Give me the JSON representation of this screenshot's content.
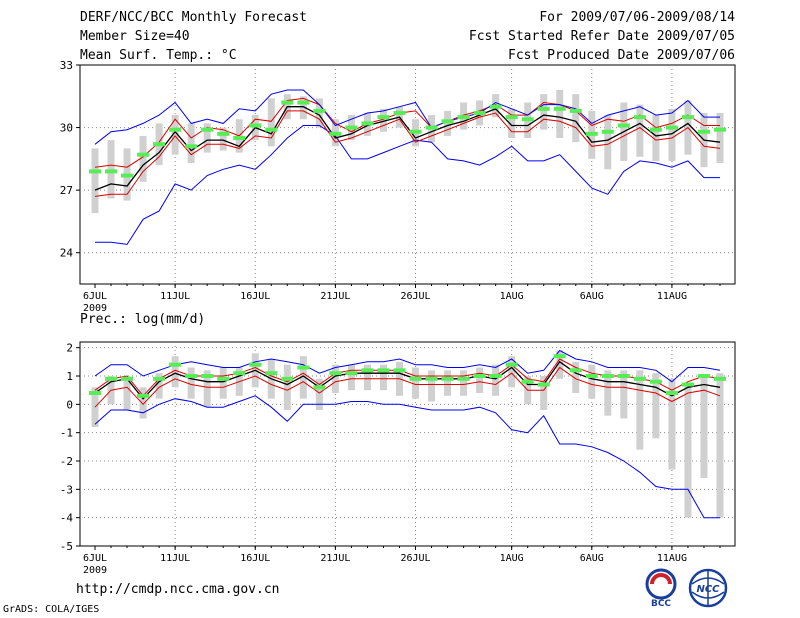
{
  "header": {
    "title": "DERF/NCC/BCC Monthly Forecast",
    "member_size": "Member Size=40",
    "variable": "Mean Surf. Temp.: °C",
    "forecast_range": "For 2009/07/06-2009/08/14",
    "start_date": "Fcst Started Refer Date 2009/07/05",
    "produced_date": "Fcst Produced Date 2009/07/06"
  },
  "footer": {
    "url": "http://cmdp.ncc.cma.gov.cn",
    "credit": "GrADS: COLA/IGES",
    "logo_bcc": "BCC",
    "logo_ncc": "NCC"
  },
  "colors": {
    "box": "#d0d0d0",
    "median": "#55ee55",
    "mean": "#000000",
    "range": "#0000ee",
    "spread": "#dd0000"
  },
  "chart_data": [
    {
      "type": "line",
      "title": "Mean Surf. Temp.: °C",
      "x": [
        1,
        2,
        3,
        4,
        5,
        6,
        7,
        8,
        9,
        10,
        11,
        12,
        13,
        14,
        15,
        16,
        17,
        18,
        19,
        20,
        21,
        22,
        23,
        24,
        25,
        26,
        27,
        28,
        29,
        30,
        31,
        32,
        33,
        34,
        35,
        36,
        37,
        38,
        39,
        40
      ],
      "x_ticks": [
        {
          "day": 1,
          "label": "6JUL",
          "sub": "2009"
        },
        {
          "day": 6,
          "label": "11JUL",
          "sub": ""
        },
        {
          "day": 11,
          "label": "16JUL",
          "sub": ""
        },
        {
          "day": 16,
          "label": "21JUL",
          "sub": ""
        },
        {
          "day": 21,
          "label": "26JUL",
          "sub": ""
        },
        {
          "day": 27,
          "label": "1AUG",
          "sub": ""
        },
        {
          "day": 32,
          "label": "6AUG",
          "sub": ""
        },
        {
          "day": 37,
          "label": "11AUG",
          "sub": ""
        }
      ],
      "ylim": [
        22.5,
        33
      ],
      "y_ticks": [
        24,
        27,
        30,
        33
      ],
      "series": [
        {
          "name": "max",
          "values": [
            24.5,
            24.5,
            24.4,
            25.6,
            26.0,
            27.3,
            27.0,
            27.7,
            28.0,
            28.2,
            28.0,
            28.7,
            29.5,
            30.1,
            30.1,
            29.6,
            28.5,
            28.5,
            28.8,
            29.1,
            29.4,
            29.3,
            28.5,
            28.4,
            28.2,
            28.6,
            29.1,
            28.4,
            28.4,
            28.7,
            27.9,
            27.1,
            26.8,
            27.9,
            28.4,
            28.3,
            28.1,
            28.4,
            27.6,
            27.6
          ]
        },
        {
          "name": "ensemble_upper",
          "values": [
            28.1,
            28.2,
            28.1,
            28.6,
            29.3,
            30.4,
            29.5,
            30.0,
            29.9,
            29.6,
            30.4,
            30.3,
            31.3,
            31.4,
            31.1,
            30.2,
            29.8,
            30.2,
            30.4,
            30.7,
            30.8,
            30.0,
            30.3,
            30.6,
            30.8,
            31.1,
            30.6,
            30.6,
            31.2,
            31.1,
            30.8,
            30.1,
            30.4,
            30.3,
            30.6,
            30.0,
            30.2,
            30.6,
            30.1,
            30.1
          ]
        },
        {
          "name": "median",
          "values": [
            27.9,
            27.9,
            27.7,
            28.7,
            29.2,
            29.9,
            29.1,
            29.9,
            29.7,
            29.5,
            30.1,
            29.9,
            31.2,
            31.2,
            30.8,
            29.7,
            30.0,
            30.2,
            30.5,
            30.7,
            29.8,
            30.0,
            30.3,
            30.5,
            30.7,
            31.0,
            30.5,
            30.4,
            30.9,
            30.9,
            30.8,
            29.7,
            29.8,
            30.1,
            30.5,
            29.9,
            30.0,
            30.5,
            29.8,
            29.9
          ]
        },
        {
          "name": "ensemble_mean",
          "values": [
            27.0,
            27.3,
            27.2,
            28.2,
            28.8,
            29.8,
            28.9,
            29.4,
            29.4,
            29.1,
            30.0,
            29.7,
            31.0,
            31.0,
            30.6,
            29.5,
            29.7,
            30.1,
            30.3,
            30.5,
            29.5,
            29.8,
            30.1,
            30.3,
            30.6,
            30.9,
            30.1,
            30.1,
            30.6,
            30.5,
            30.3,
            29.3,
            29.4,
            29.8,
            30.2,
            29.6,
            29.7,
            30.2,
            29.4,
            29.3
          ]
        },
        {
          "name": "ensemble_lower",
          "values": [
            26.7,
            26.8,
            26.8,
            27.9,
            28.6,
            29.6,
            28.7,
            29.2,
            29.2,
            29.0,
            29.6,
            29.5,
            30.8,
            30.8,
            30.4,
            29.3,
            29.5,
            29.8,
            30.1,
            30.4,
            29.3,
            29.6,
            29.9,
            30.2,
            30.5,
            30.7,
            29.8,
            29.8,
            30.4,
            30.3,
            30.0,
            29.1,
            29.2,
            29.6,
            30.0,
            29.4,
            29.5,
            30.0,
            29.1,
            29.0
          ]
        },
        {
          "name": "min",
          "values": [
            29.2,
            29.8,
            29.9,
            30.2,
            30.6,
            31.2,
            30.2,
            30.4,
            30.2,
            30.9,
            30.8,
            31.6,
            31.8,
            31.8,
            31.1,
            30.1,
            30.4,
            30.7,
            30.8,
            31.0,
            31.2,
            30.0,
            30.3,
            30.5,
            30.7,
            31.2,
            30.9,
            30.6,
            31.1,
            31.1,
            30.9,
            30.2,
            30.6,
            30.8,
            31.0,
            30.6,
            30.7,
            31.3,
            30.5,
            30.5
          ]
        }
      ],
      "boxes": [
        [
          25.9,
          29.0
        ],
        [
          26.6,
          29.4
        ],
        [
          26.5,
          29.0
        ],
        [
          27.4,
          29.6
        ],
        [
          28.2,
          30.2
        ],
        [
          28.7,
          30.6
        ],
        [
          28.3,
          30.2
        ],
        [
          28.8,
          30.2
        ],
        [
          28.9,
          30.0
        ],
        [
          28.8,
          30.4
        ],
        [
          29.4,
          30.6
        ],
        [
          29.1,
          31.4
        ],
        [
          30.4,
          31.6
        ],
        [
          30.4,
          31.5
        ],
        [
          30.0,
          31.4
        ],
        [
          29.1,
          30.4
        ],
        [
          29.4,
          30.6
        ],
        [
          29.6,
          30.7
        ],
        [
          29.8,
          30.9
        ],
        [
          30.0,
          31.0
        ],
        [
          29.1,
          30.4
        ],
        [
          29.3,
          30.6
        ],
        [
          29.6,
          30.8
        ],
        [
          29.9,
          31.2
        ],
        [
          30.1,
          31.3
        ],
        [
          30.5,
          31.6
        ],
        [
          29.5,
          30.9
        ],
        [
          29.5,
          31.2
        ],
        [
          29.9,
          31.6
        ],
        [
          29.5,
          31.8
        ],
        [
          29.3,
          31.6
        ],
        [
          28.5,
          30.8
        ],
        [
          28.0,
          30.6
        ],
        [
          28.4,
          31.2
        ],
        [
          28.6,
          31.1
        ],
        [
          28.4,
          30.6
        ],
        [
          28.4,
          30.9
        ],
        [
          28.7,
          31.3
        ],
        [
          28.1,
          30.7
        ],
        [
          28.3,
          30.7
        ]
      ]
    },
    {
      "type": "line",
      "title": "Prec.: log(mm/d)",
      "x": [
        1,
        2,
        3,
        4,
        5,
        6,
        7,
        8,
        9,
        10,
        11,
        12,
        13,
        14,
        15,
        16,
        17,
        18,
        19,
        20,
        21,
        22,
        23,
        24,
        25,
        26,
        27,
        28,
        29,
        30,
        31,
        32,
        33,
        34,
        35,
        36,
        37,
        38,
        39,
        40
      ],
      "x_ticks": [
        {
          "day": 1,
          "label": "6JUL",
          "sub": "2009"
        },
        {
          "day": 6,
          "label": "11JUL",
          "sub": ""
        },
        {
          "day": 11,
          "label": "16JUL",
          "sub": ""
        },
        {
          "day": 16,
          "label": "21JUL",
          "sub": ""
        },
        {
          "day": 21,
          "label": "26JUL",
          "sub": ""
        },
        {
          "day": 27,
          "label": "1AUG",
          "sub": ""
        },
        {
          "day": 32,
          "label": "6AUG",
          "sub": ""
        },
        {
          "day": 37,
          "label": "11AUG",
          "sub": ""
        }
      ],
      "ylim": [
        -5,
        2.2
      ],
      "y_ticks": [
        -5,
        -4,
        -3,
        -2,
        -1,
        0,
        1,
        2
      ],
      "series": [
        {
          "name": "max",
          "values": [
            1.0,
            1.4,
            1.4,
            1.0,
            1.2,
            1.4,
            1.5,
            1.4,
            1.3,
            1.3,
            1.5,
            1.6,
            1.5,
            1.4,
            1.1,
            1.3,
            1.4,
            1.5,
            1.5,
            1.6,
            1.4,
            1.4,
            1.3,
            1.3,
            1.4,
            1.3,
            1.6,
            1.1,
            1.2,
            1.9,
            1.6,
            1.5,
            1.3,
            1.3,
            1.3,
            1.2,
            0.8,
            1.3,
            1.3,
            1.2
          ]
        },
        {
          "name": "ensemble_upper",
          "values": [
            0.5,
            0.9,
            1.0,
            0.3,
            0.9,
            1.2,
            1.0,
            1.0,
            1.0,
            1.1,
            1.3,
            1.0,
            0.8,
            1.1,
            0.7,
            1.1,
            1.2,
            1.2,
            1.2,
            1.2,
            1.0,
            1.0,
            1.0,
            1.0,
            1.1,
            1.0,
            1.4,
            0.9,
            0.8,
            1.6,
            1.3,
            1.1,
            1.0,
            1.0,
            0.9,
            0.8,
            0.5,
            0.8,
            1.0,
            0.9
          ]
        },
        {
          "name": "median",
          "values": [
            0.4,
            0.9,
            0.9,
            0.3,
            0.9,
            1.4,
            1.0,
            1.0,
            0.9,
            1.1,
            1.4,
            1.1,
            0.9,
            1.3,
            0.6,
            1.1,
            1.1,
            1.2,
            1.2,
            1.2,
            0.9,
            0.9,
            0.9,
            0.9,
            1.0,
            1.0,
            1.4,
            0.8,
            0.7,
            1.7,
            1.2,
            1.0,
            1.0,
            1.0,
            0.9,
            0.8,
            0.4,
            0.7,
            1.0,
            0.9
          ]
        },
        {
          "name": "ensemble_mean",
          "values": [
            0.4,
            0.8,
            0.9,
            0.2,
            0.8,
            1.1,
            0.9,
            0.8,
            0.8,
            1.0,
            1.2,
            0.9,
            0.7,
            1.0,
            0.6,
            1.0,
            1.1,
            1.1,
            1.1,
            1.1,
            0.9,
            0.9,
            0.9,
            0.9,
            1.0,
            0.9,
            1.3,
            0.7,
            0.7,
            1.5,
            1.1,
            0.9,
            0.8,
            0.8,
            0.7,
            0.6,
            0.3,
            0.6,
            0.7,
            0.6
          ]
        },
        {
          "name": "ensemble_lower",
          "values": [
            -0.1,
            0.5,
            0.6,
            0.0,
            0.6,
            0.9,
            0.7,
            0.6,
            0.6,
            0.8,
            1.0,
            0.7,
            0.5,
            0.8,
            0.4,
            0.8,
            0.9,
            0.9,
            0.9,
            0.9,
            0.7,
            0.7,
            0.7,
            0.7,
            0.8,
            0.7,
            1.1,
            0.5,
            0.5,
            1.3,
            0.9,
            0.7,
            0.6,
            0.6,
            0.5,
            0.4,
            0.1,
            0.4,
            0.5,
            0.3
          ]
        },
        {
          "name": "min",
          "values": [
            -0.7,
            -0.2,
            -0.2,
            -0.3,
            0.0,
            0.2,
            0.1,
            -0.1,
            -0.1,
            0.1,
            0.3,
            -0.1,
            -0.6,
            0.0,
            0.0,
            0.0,
            0.1,
            0.1,
            0.0,
            0.0,
            -0.1,
            -0.2,
            -0.2,
            -0.2,
            -0.1,
            -0.3,
            -0.9,
            -1.0,
            -0.4,
            -1.4,
            -1.4,
            -1.5,
            -1.7,
            -2.0,
            -2.4,
            -2.9,
            -3.0,
            -3.0,
            -4.0,
            -4.0
          ]
        }
      ],
      "boxes": [
        [
          -0.8,
          0.6
        ],
        [
          0.0,
          1.0
        ],
        [
          -0.2,
          1.0
        ],
        [
          -0.5,
          0.6
        ],
        [
          0.2,
          1.1
        ],
        [
          0.6,
          1.7
        ],
        [
          0.2,
          1.3
        ],
        [
          -0.1,
          1.2
        ],
        [
          0.2,
          1.3
        ],
        [
          0.3,
          1.3
        ],
        [
          0.6,
          1.8
        ],
        [
          0.2,
          1.6
        ],
        [
          -0.2,
          1.4
        ],
        [
          0.2,
          1.7
        ],
        [
          -0.2,
          0.9
        ],
        [
          0.4,
          1.4
        ],
        [
          0.5,
          1.4
        ],
        [
          0.5,
          1.4
        ],
        [
          0.5,
          1.4
        ],
        [
          0.3,
          1.5
        ],
        [
          0.2,
          1.3
        ],
        [
          0.1,
          1.2
        ],
        [
          0.3,
          1.2
        ],
        [
          0.3,
          1.2
        ],
        [
          0.4,
          1.3
        ],
        [
          0.3,
          1.4
        ],
        [
          0.6,
          1.7
        ],
        [
          0.0,
          1.0
        ],
        [
          -0.2,
          1.0
        ],
        [
          0.9,
          1.9
        ],
        [
          0.4,
          1.5
        ],
        [
          0.2,
          1.4
        ],
        [
          -0.4,
          1.2
        ],
        [
          -0.5,
          1.2
        ],
        [
          -1.6,
          1.2
        ],
        [
          -1.2,
          1.1
        ],
        [
          -2.3,
          0.9
        ],
        [
          -4.0,
          0.7
        ],
        [
          -2.6,
          1.0
        ],
        [
          -4.0,
          1.1
        ]
      ]
    }
  ]
}
